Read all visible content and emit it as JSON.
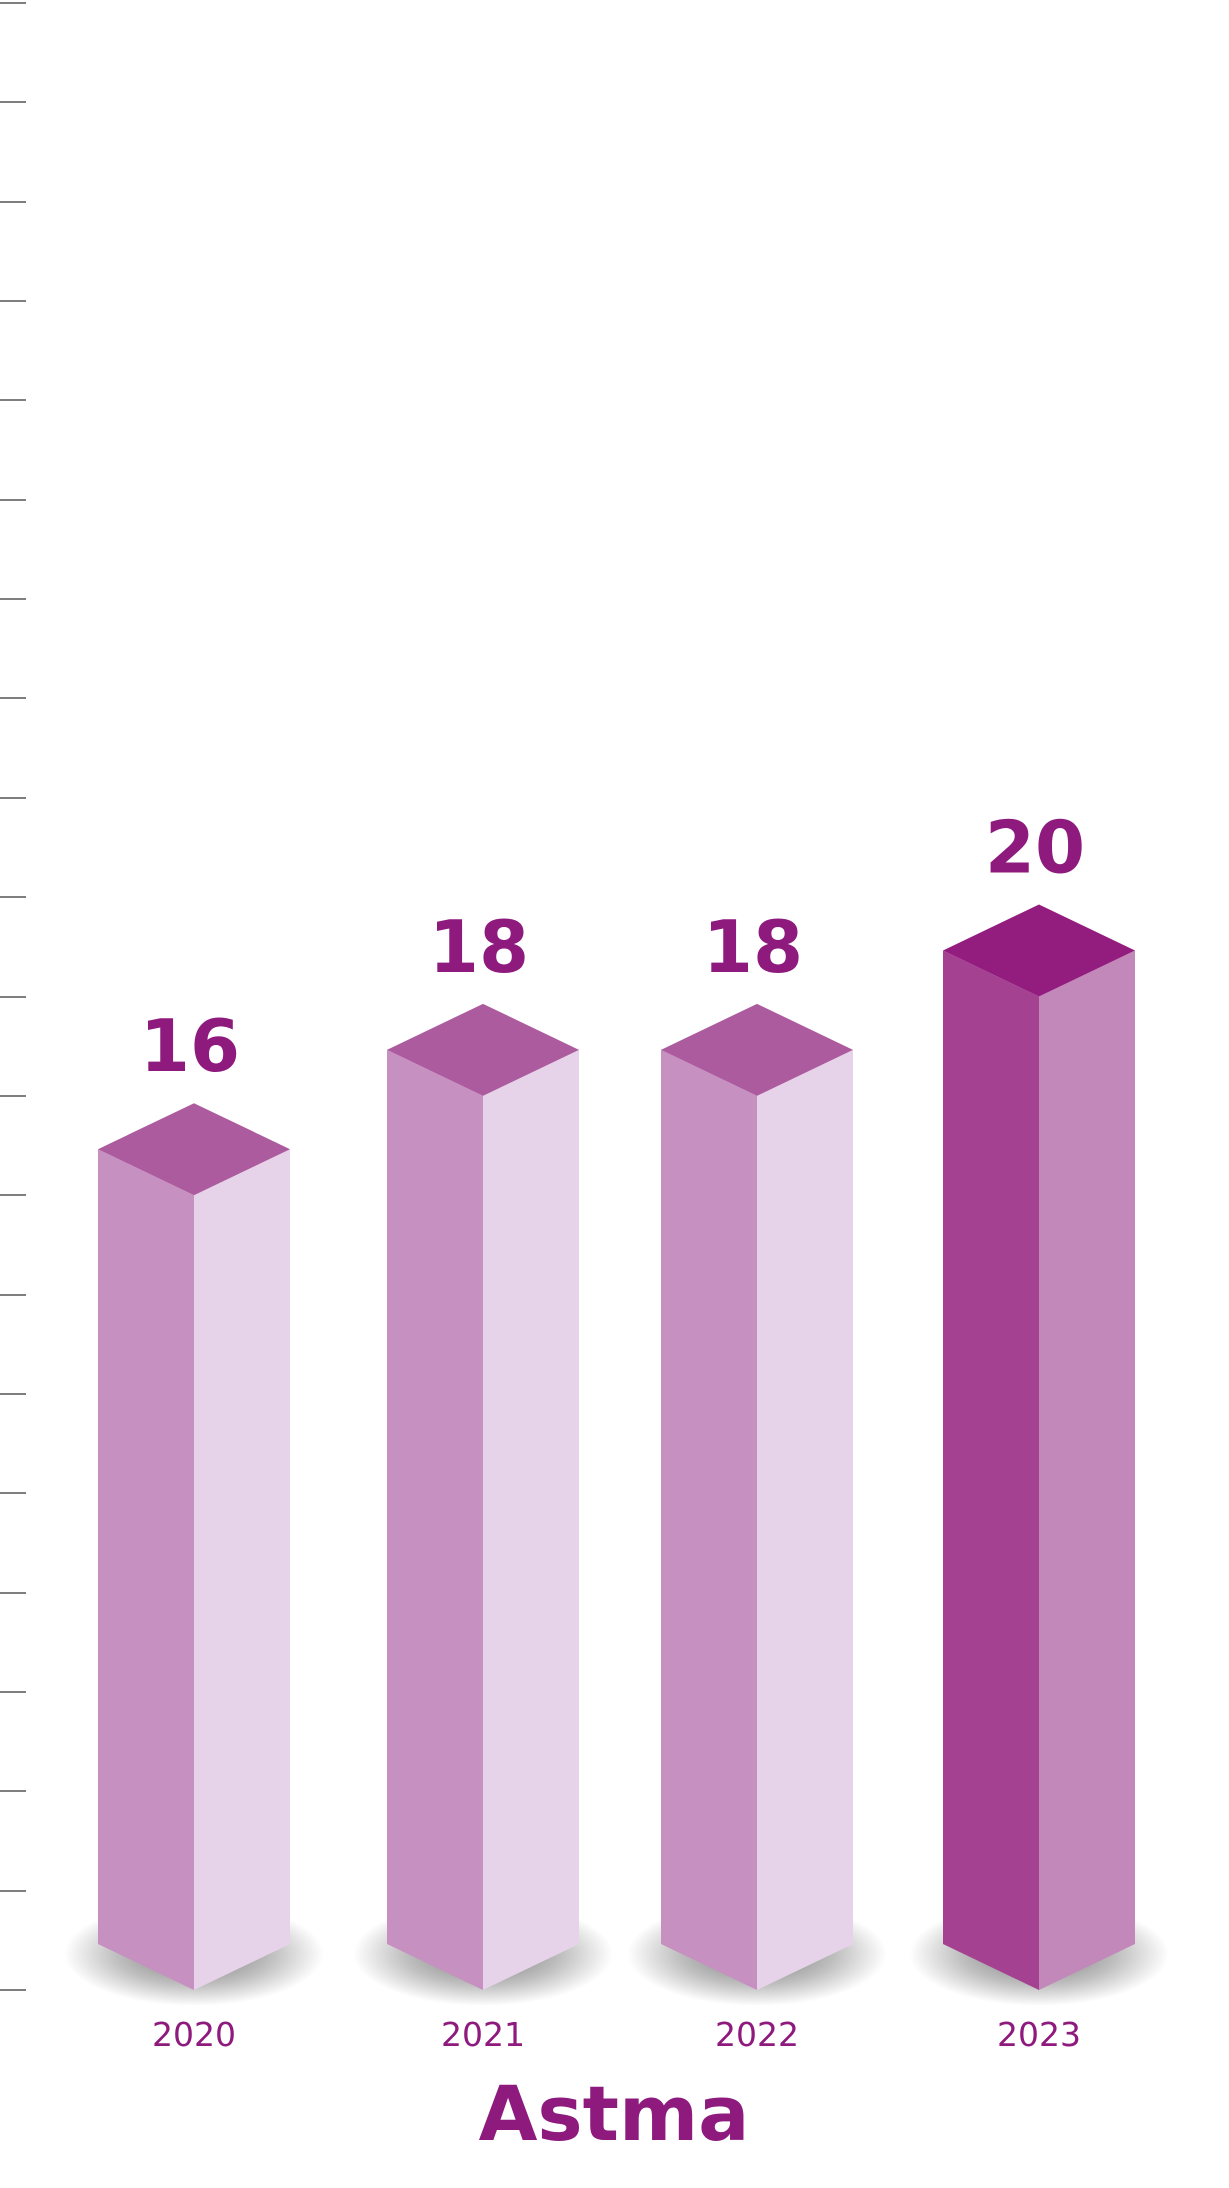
{
  "chart_data": {
    "type": "bar",
    "title": "Astma",
    "categories": [
      "2020",
      "2021",
      "2022",
      "2023"
    ],
    "values": [
      16,
      18,
      18,
      20
    ],
    "ylim": [
      0,
      40
    ],
    "grid": false,
    "legend": "none",
    "highlight_index": 3
  },
  "colors": {
    "text": "#8e1a7e",
    "axis": "#555555",
    "bar_left": "#c690c1",
    "bar_right": "#e7d3e9",
    "bar_top": "#ac5b9e",
    "highlight_left": "#a44191",
    "highlight_right": "#c188b9",
    "highlight_top": "#931c7f"
  }
}
